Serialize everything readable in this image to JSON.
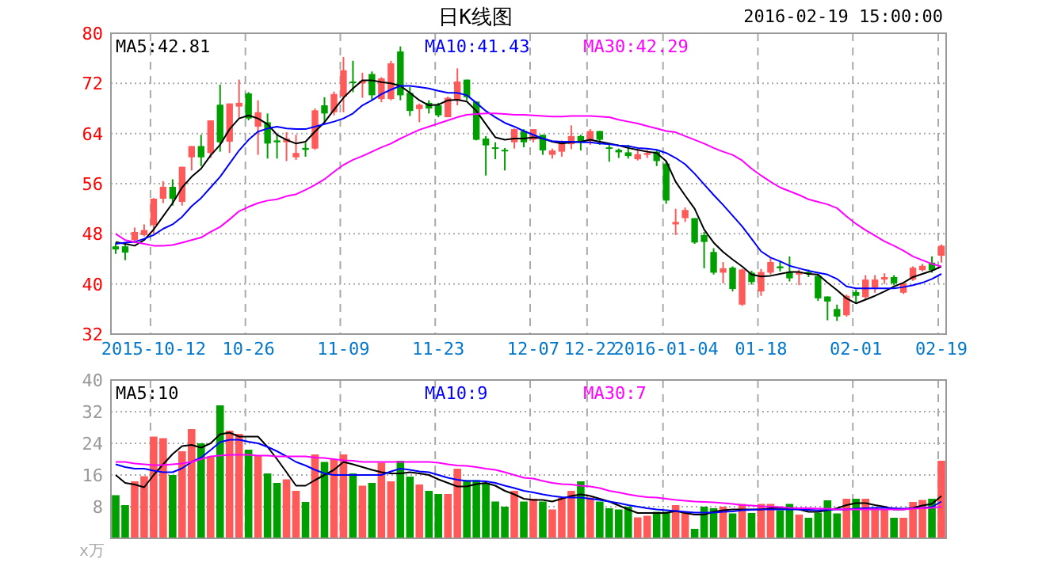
{
  "chart_data": [
    {
      "type": "candlestick",
      "title": "日K线图",
      "annotations": [
        "2016-02-19 15:00:00"
      ],
      "grid": true,
      "legend": "top",
      "ylim": [
        32,
        80
      ],
      "yticks": [
        32,
        40,
        48,
        56,
        64,
        72,
        80
      ],
      "categories": [
        null,
        null,
        null,
        null,
        "2015-10-12",
        null,
        null,
        null,
        null,
        null,
        null,
        null,
        null,
        null,
        "10-26",
        null,
        null,
        null,
        null,
        null,
        null,
        null,
        null,
        null,
        "11-09",
        null,
        null,
        null,
        null,
        null,
        null,
        null,
        null,
        null,
        "11-23",
        null,
        null,
        null,
        null,
        null,
        null,
        null,
        null,
        null,
        "12-07",
        null,
        null,
        null,
        null,
        null,
        "12-22",
        null,
        null,
        null,
        null,
        null,
        null,
        null,
        "2016-01-04",
        null,
        null,
        null,
        null,
        null,
        null,
        null,
        null,
        null,
        "01-18",
        null,
        null,
        null,
        null,
        null,
        null,
        null,
        null,
        null,
        "02-01",
        null,
        null,
        null,
        null,
        null,
        null,
        null,
        null,
        "02-19"
      ],
      "ohlc": [
        [
          46.0,
          46.6,
          44.8,
          45.5
        ],
        [
          46.0,
          46.4,
          43.8,
          45.0
        ],
        [
          47.0,
          49.0,
          46.5,
          48.3
        ],
        [
          47.8,
          49.5,
          47.6,
          48.6
        ],
        [
          49.4,
          53.7,
          48.0,
          53.6
        ],
        [
          53.6,
          56.4,
          52.9,
          55.5
        ],
        [
          55.5,
          56.7,
          52.5,
          53.6
        ],
        [
          53.1,
          58.7,
          52.5,
          58.7
        ],
        [
          60.2,
          62.0,
          58.1,
          62.0
        ],
        [
          62.0,
          63.8,
          58.8,
          60.2
        ],
        [
          60.9,
          66.1,
          60.1,
          66.1
        ],
        [
          68.6,
          71.8,
          61.1,
          62.6
        ],
        [
          62.7,
          68.8,
          60.9,
          68.8
        ],
        [
          68.3,
          72.6,
          66.4,
          68.9
        ],
        [
          70.4,
          70.6,
          66.1,
          66.4
        ],
        [
          65.1,
          69.3,
          60.6,
          67.4
        ],
        [
          65.8,
          67.2,
          60.0,
          62.4
        ],
        [
          62.9,
          63.9,
          60.0,
          62.6
        ],
        [
          62.6,
          64.2,
          59.6,
          63.2
        ],
        [
          60.2,
          63.8,
          59.8,
          60.9
        ],
        [
          61.7,
          62.5,
          60.3,
          61.4
        ],
        [
          61.6,
          68.0,
          61.4,
          67.7
        ],
        [
          68.5,
          69.8,
          65.8,
          67.2
        ],
        [
          67.4,
          70.7,
          66.9,
          70.3
        ],
        [
          69.9,
          76.2,
          67.4,
          74.1
        ],
        [
          72.3,
          75.6,
          70.6,
          72.1
        ],
        [
          72.0,
          73.7,
          69.7,
          72.4
        ],
        [
          73.5,
          73.9,
          69.3,
          70.1
        ],
        [
          69.5,
          73.0,
          69.0,
          72.8
        ],
        [
          69.5,
          75.6,
          69.3,
          75.2
        ],
        [
          77.1,
          77.9,
          69.3,
          70.1
        ],
        [
          70.5,
          71.4,
          66.8,
          67.6
        ],
        [
          67.9,
          68.8,
          65.8,
          68.6
        ],
        [
          68.9,
          69.3,
          67.2,
          68.0
        ],
        [
          68.5,
          68.9,
          66.6,
          66.9
        ],
        [
          66.6,
          69.9,
          66.6,
          69.7
        ],
        [
          69.3,
          74.4,
          68.5,
          72.3
        ],
        [
          72.6,
          72.6,
          69.3,
          69.8
        ],
        [
          69.1,
          69.1,
          62.9,
          63.0
        ],
        [
          63.2,
          63.6,
          57.3,
          62.1
        ],
        [
          61.8,
          62.6,
          59.9,
          61.6
        ],
        [
          61.4,
          61.7,
          58.1,
          61.2
        ],
        [
          62.6,
          64.8,
          61.6,
          64.7
        ],
        [
          64.4,
          64.7,
          61.8,
          62.6
        ],
        [
          63.0,
          64.7,
          62.6,
          64.7
        ],
        [
          63.8,
          63.8,
          60.6,
          61.3
        ],
        [
          60.6,
          61.6,
          60.0,
          61.3
        ],
        [
          61.1,
          62.9,
          60.3,
          62.7
        ],
        [
          62.3,
          65.3,
          61.5,
          63.6
        ],
        [
          63.6,
          63.8,
          61.3,
          62.6
        ],
        [
          62.8,
          64.7,
          62.2,
          64.4
        ],
        [
          64.4,
          64.4,
          62.2,
          63.0
        ],
        [
          61.8,
          62.4,
          59.5,
          61.6
        ],
        [
          61.4,
          61.6,
          60.1,
          61.0
        ],
        [
          61.0,
          62.2,
          60.0,
          60.4
        ],
        [
          59.9,
          61.3,
          59.7,
          60.7
        ],
        [
          60.6,
          61.4,
          60.1,
          60.9
        ],
        [
          61.1,
          61.3,
          58.8,
          59.6
        ],
        [
          59.2,
          59.6,
          52.8,
          53.3
        ],
        [
          49.5,
          52.0,
          47.8,
          49.9
        ],
        [
          50.5,
          52.2,
          49.9,
          51.8
        ],
        [
          50.5,
          50.5,
          46.4,
          46.6
        ],
        [
          47.8,
          48.3,
          42.5,
          46.7
        ],
        [
          45.1,
          45.7,
          41.5,
          41.8
        ],
        [
          41.8,
          43.5,
          40.1,
          42.5
        ],
        [
          42.6,
          42.8,
          38.8,
          39.2
        ],
        [
          36.7,
          42.4,
          36.5,
          42.3
        ],
        [
          41.8,
          42.1,
          39.9,
          40.3
        ],
        [
          38.8,
          42.4,
          38.1,
          41.9
        ],
        [
          41.8,
          44.1,
          41.5,
          43.5
        ],
        [
          42.8,
          43.7,
          42.0,
          42.5
        ],
        [
          41.9,
          44.4,
          40.4,
          40.9
        ],
        [
          41.5,
          42.3,
          39.8,
          41.9
        ],
        [
          41.9,
          42.3,
          41.1,
          41.6
        ],
        [
          41.3,
          41.5,
          37.3,
          37.7
        ],
        [
          38.0,
          38.0,
          34.2,
          37.2
        ],
        [
          36.0,
          36.7,
          34.1,
          34.8
        ],
        [
          35.0,
          38.3,
          34.8,
          38.1
        ],
        [
          38.7,
          39.1,
          36.8,
          38.1
        ],
        [
          37.9,
          41.4,
          37.5,
          40.7
        ],
        [
          39.4,
          41.4,
          38.6,
          40.7
        ],
        [
          40.7,
          41.7,
          40.0,
          41.1
        ],
        [
          41.1,
          41.4,
          39.8,
          40.1
        ],
        [
          38.6,
          40.1,
          38.4,
          40.1
        ],
        [
          40.7,
          42.8,
          40.5,
          42.6
        ],
        [
          42.2,
          43.2,
          42.0,
          42.9
        ],
        [
          43.4,
          44.4,
          41.8,
          42.2
        ],
        [
          44.5,
          46.3,
          43.4,
          46.1
        ]
      ],
      "colors": [
        "#009f00",
        "#009f00",
        "#ff5a5a",
        "#ff5a5a",
        "#ff5a5a",
        "#ff5a5a",
        "#009f00",
        "#ff5a5a",
        "#ff5a5a",
        "#009f00",
        "#ff5a5a",
        "#009f00",
        "#ff5a5a",
        "#ff5a5a",
        "#009f00",
        "#ff5a5a",
        "#009f00",
        "#009f00",
        "#ff5a5a",
        "#ff5a5a",
        "#009f00",
        "#ff5a5a",
        "#009f00",
        "#ff5a5a",
        "#ff5a5a",
        "#009f00",
        "#ff5a5a",
        "#009f00",
        "#ff5a5a",
        "#ff5a5a",
        "#009f00",
        "#009f00",
        "#ff5a5a",
        "#009f00",
        "#009f00",
        "#ff5a5a",
        "#ff5a5a",
        "#009f00",
        "#009f00",
        "#009f00",
        "#009f00",
        "#009f00",
        "#ff5a5a",
        "#009f00",
        "#ff5a5a",
        "#009f00",
        "#ff5a5a",
        "#ff5a5a",
        "#ff5a5a",
        "#009f00",
        "#ff5a5a",
        "#009f00",
        "#009f00",
        "#009f00",
        "#009f00",
        "#ff5a5a",
        "#ff5a5a",
        "#009f00",
        "#009f00",
        "#ff5a5a",
        "#ff5a5a",
        "#009f00",
        "#009f00",
        "#009f00",
        "#ff5a5a",
        "#009f00",
        "#ff5a5a",
        "#009f00",
        "#ff5a5a",
        "#ff5a5a",
        "#009f00",
        "#009f00",
        "#ff5a5a",
        "#009f00",
        "#009f00",
        "#009f00",
        "#009f00",
        "#ff5a5a",
        "#009f00",
        "#ff5a5a",
        "#ff5a5a",
        "#ff5a5a",
        "#009f00",
        "#ff5a5a",
        "#ff5a5a",
        "#ff5a5a",
        "#009f00",
        "#ff5a5a"
      ],
      "series": [
        {
          "name": "MA5:42.81",
          "type": "line",
          "color": "#000000",
          "values": [
            46.7,
            46.4,
            46.1,
            47.0,
            48.7,
            50.8,
            52.9,
            55.4,
            57.1,
            58.4,
            60.5,
            62.2,
            64.7,
            66.4,
            66.9,
            66.4,
            65.5,
            63.8,
            63.0,
            62.4,
            62.7,
            64.3,
            65.8,
            67.8,
            69.7,
            71.2,
            72.5,
            72.5,
            72.2,
            72.0,
            71.6,
            70.5,
            69.3,
            68.5,
            68.6,
            69.3,
            69.4,
            69.1,
            67.6,
            65.5,
            63.4,
            63.0,
            63.2,
            63.2,
            63.4,
            63.2,
            62.7,
            62.4,
            62.6,
            62.7,
            63.0,
            62.7,
            62.4,
            62.1,
            61.7,
            61.4,
            61.1,
            60.9,
            59.6,
            56.3,
            54.1,
            52.0,
            48.7,
            46.6,
            45.1,
            43.9,
            42.8,
            41.5,
            41.2,
            41.3,
            41.6,
            41.9,
            41.9,
            41.6,
            41.5,
            40.2,
            39.0,
            37.7,
            36.9,
            37.5,
            38.1,
            38.8,
            39.6,
            40.2,
            41.1,
            41.6,
            42.1,
            42.8
          ]
        },
        {
          "name": "MA10:41.43",
          "type": "line",
          "color": "#0000ff",
          "values": [
            46.4,
            46.6,
            46.7,
            47.2,
            47.8,
            48.8,
            49.5,
            50.7,
            52.4,
            53.7,
            55.4,
            57.1,
            59.2,
            61.3,
            63.0,
            64.3,
            64.8,
            65.1,
            64.8,
            64.7,
            64.7,
            65.1,
            65.5,
            65.9,
            66.4,
            67.2,
            68.5,
            69.3,
            70.3,
            71.0,
            71.6,
            71.6,
            71.4,
            71.2,
            70.8,
            70.5,
            70.5,
            70.1,
            68.9,
            67.6,
            66.6,
            65.7,
            65.1,
            64.4,
            63.8,
            63.2,
            62.8,
            62.7,
            62.7,
            62.6,
            62.6,
            62.4,
            62.3,
            62.1,
            62.0,
            61.7,
            61.6,
            61.4,
            60.9,
            60.1,
            59.1,
            57.6,
            55.9,
            54.2,
            52.6,
            50.9,
            49.2,
            47.2,
            45.2,
            44.2,
            43.6,
            42.9,
            42.5,
            42.1,
            41.8,
            41.5,
            40.8,
            39.6,
            39.3,
            39.3,
            39.3,
            39.3,
            39.3,
            39.5,
            39.8,
            40.2,
            40.8,
            41.6
          ]
        },
        {
          "name": "MA30:42.29",
          "type": "line",
          "color": "#ff00ff",
          "values": [
            48.0,
            47.0,
            46.7,
            46.4,
            46.1,
            46.1,
            46.2,
            46.6,
            47.0,
            47.4,
            48.3,
            49.1,
            50.3,
            51.6,
            52.3,
            52.9,
            53.3,
            53.5,
            54.0,
            54.3,
            55.0,
            55.8,
            56.7,
            57.9,
            59.0,
            59.8,
            60.4,
            61.1,
            61.8,
            62.4,
            63.2,
            63.9,
            64.6,
            65.1,
            65.6,
            66.1,
            66.6,
            67.0,
            67.1,
            67.2,
            67.2,
            67.1,
            67.0,
            67.0,
            66.9,
            66.8,
            66.7,
            66.7,
            66.8,
            66.8,
            66.8,
            66.7,
            66.6,
            66.2,
            65.9,
            65.6,
            65.2,
            64.8,
            64.4,
            64.2,
            63.6,
            63.0,
            62.4,
            61.7,
            61.1,
            60.6,
            59.7,
            58.4,
            57.3,
            56.3,
            55.4,
            54.8,
            54.2,
            53.5,
            53.1,
            52.7,
            52.1,
            50.8,
            49.6,
            48.6,
            47.7,
            46.8,
            46.1,
            45.3,
            44.4,
            43.8,
            43.2,
            42.8
          ]
        }
      ]
    },
    {
      "type": "bar",
      "ylabel": "x万",
      "grid": true,
      "legend": "top",
      "tick_labels": "y",
      "ylim": [
        0,
        40
      ],
      "yticks": [
        {
          "value": 0,
          "label": null
        },
        8,
        16,
        24,
        32,
        40
      ],
      "categories": [
        null,
        null,
        null,
        null,
        null,
        null,
        null,
        null,
        null,
        null,
        null,
        null,
        null,
        null,
        null,
        null,
        null,
        null,
        null,
        null,
        null,
        null,
        null,
        null,
        null,
        null,
        null,
        null,
        null,
        null,
        null,
        null,
        null,
        null,
        null,
        null,
        null,
        null,
        null,
        null,
        null,
        null,
        null,
        null,
        null,
        null,
        null,
        null,
        null,
        null,
        null,
        null,
        null,
        null,
        null,
        null,
        null,
        null,
        null,
        null,
        null,
        null,
        null,
        null,
        null,
        null,
        null,
        null,
        null,
        null,
        null,
        null,
        null,
        null,
        null,
        null,
        null,
        null,
        null,
        null,
        null,
        null,
        null,
        null,
        null,
        null,
        null,
        null
      ],
      "series": [
        {
          "type": "bar",
          "colors": [
            "#009f00",
            "#009f00",
            "#ff5a5a",
            "#ff5a5a",
            "#ff5a5a",
            "#ff5a5a",
            "#009f00",
            "#ff5a5a",
            "#ff5a5a",
            "#009f00",
            "#ff5a5a",
            "#009f00",
            "#ff5a5a",
            "#ff5a5a",
            "#009f00",
            "#ff5a5a",
            "#009f00",
            "#009f00",
            "#ff5a5a",
            "#ff5a5a",
            "#009f00",
            "#ff5a5a",
            "#009f00",
            "#ff5a5a",
            "#ff5a5a",
            "#009f00",
            "#ff5a5a",
            "#009f00",
            "#ff5a5a",
            "#ff5a5a",
            "#009f00",
            "#009f00",
            "#ff5a5a",
            "#009f00",
            "#009f00",
            "#ff5a5a",
            "#ff5a5a",
            "#009f00",
            "#009f00",
            "#009f00",
            "#009f00",
            "#009f00",
            "#ff5a5a",
            "#009f00",
            "#ff5a5a",
            "#009f00",
            "#ff5a5a",
            "#ff5a5a",
            "#ff5a5a",
            "#009f00",
            "#ff5a5a",
            "#009f00",
            "#009f00",
            "#009f00",
            "#009f00",
            "#ff5a5a",
            "#ff5a5a",
            "#009f00",
            "#009f00",
            "#ff5a5a",
            "#ff5a5a",
            "#009f00",
            "#009f00",
            "#009f00",
            "#ff5a5a",
            "#009f00",
            "#ff5a5a",
            "#009f00",
            "#ff5a5a",
            "#ff5a5a",
            "#009f00",
            "#009f00",
            "#ff5a5a",
            "#009f00",
            "#009f00",
            "#009f00",
            "#009f00",
            "#ff5a5a",
            "#009f00",
            "#ff5a5a",
            "#ff5a5a",
            "#ff5a5a",
            "#009f00",
            "#ff5a5a",
            "#ff5a5a",
            "#ff5a5a",
            "#009f00",
            "#ff5a5a"
          ],
          "values": [
            10.9,
            8.4,
            14.4,
            15.7,
            25.7,
            25.3,
            16.0,
            22.0,
            27.6,
            24.0,
            20.7,
            33.6,
            27.2,
            26.4,
            22.4,
            20.9,
            16.4,
            14.0,
            14.9,
            12.0,
            9.2,
            21.2,
            19.3,
            20.0,
            21.2,
            16.4,
            13.3,
            14.0,
            19.1,
            14.4,
            19.6,
            15.6,
            13.6,
            12.0,
            11.2,
            11.2,
            17.6,
            14.7,
            14.7,
            14.0,
            9.3,
            8.0,
            12.0,
            9.3,
            10.0,
            9.3,
            7.3,
            10.3,
            12.0,
            14.4,
            10.3,
            9.3,
            7.6,
            7.3,
            8.0,
            5.3,
            5.7,
            6.7,
            6.7,
            8.4,
            6.7,
            2.4,
            8.0,
            7.6,
            8.0,
            6.3,
            8.7,
            6.4,
            8.7,
            8.7,
            7.1,
            8.7,
            6.0,
            5.2,
            6.5,
            9.6,
            6.3,
            10.0,
            10.0,
            10.0,
            7.6,
            7.3,
            5.2,
            5.2,
            9.2,
            9.7,
            10.0,
            19.6
          ]
        },
        {
          "name": "MA5:10",
          "type": "line",
          "color": "#000000",
          "values": [
            16.0,
            14.0,
            13.6,
            12.9,
            16.0,
            18.7,
            21.3,
            23.3,
            23.6,
            22.9,
            24.0,
            26.3,
            26.7,
            25.7,
            25.7,
            25.7,
            23.1,
            20.0,
            16.7,
            13.3,
            13.3,
            14.7,
            16.0,
            17.3,
            19.3,
            18.7,
            18.0,
            17.3,
            16.7,
            16.4,
            16.4,
            16.7,
            16.4,
            16.0,
            14.9,
            14.0,
            13.1,
            13.1,
            13.7,
            14.0,
            13.3,
            12.0,
            11.1,
            10.0,
            9.7,
            9.7,
            9.3,
            10.0,
            10.7,
            11.1,
            10.7,
            10.0,
            9.3,
            8.3,
            7.3,
            6.4,
            6.4,
            6.4,
            6.4,
            6.9,
            6.4,
            6.0,
            6.0,
            6.7,
            7.1,
            7.3,
            7.3,
            7.3,
            7.3,
            7.6,
            7.7,
            7.6,
            7.3,
            6.7,
            6.7,
            7.1,
            7.6,
            8.4,
            8.9,
            8.9,
            8.4,
            8.0,
            7.3,
            7.3,
            7.7,
            8.3,
            8.7,
            10.7
          ]
        },
        {
          "name": "MA10:9",
          "type": "line",
          "color": "#0000ff",
          "values": [
            18.7,
            18.0,
            17.6,
            17.6,
            17.1,
            16.7,
            16.7,
            17.7,
            19.3,
            20.4,
            22.3,
            24.3,
            24.9,
            24.9,
            24.4,
            24.0,
            23.1,
            22.0,
            20.7,
            19.3,
            18.4,
            17.3,
            16.4,
            16.0,
            16.0,
            16.0,
            16.0,
            16.0,
            16.0,
            16.9,
            17.6,
            17.3,
            16.9,
            16.7,
            16.0,
            15.3,
            14.8,
            14.5,
            14.5,
            14.4,
            14.0,
            13.3,
            12.7,
            12.0,
            11.6,
            11.1,
            10.7,
            10.4,
            10.3,
            10.3,
            10.0,
            9.7,
            9.3,
            8.9,
            8.4,
            8.0,
            7.6,
            7.3,
            7.1,
            6.9,
            6.7,
            6.5,
            6.5,
            6.5,
            6.7,
            6.8,
            7.1,
            7.2,
            7.3,
            7.3,
            7.3,
            7.3,
            7.3,
            7.2,
            7.1,
            7.2,
            7.3,
            7.3,
            7.5,
            7.6,
            7.7,
            7.7,
            7.6,
            7.5,
            7.6,
            7.7,
            7.9,
            9.3
          ]
        },
        {
          "name": "MA30:7",
          "type": "line",
          "color": "#ff00ff",
          "values": [
            19.3,
            19.3,
            18.9,
            18.7,
            18.5,
            18.5,
            18.7,
            18.9,
            19.3,
            20.0,
            20.7,
            20.9,
            21.1,
            21.1,
            21.1,
            20.9,
            20.9,
            20.7,
            20.7,
            20.7,
            20.7,
            20.4,
            20.3,
            20.0,
            19.7,
            19.6,
            19.3,
            19.3,
            19.3,
            19.3,
            19.3,
            19.3,
            19.3,
            19.3,
            19.1,
            18.7,
            18.4,
            18.3,
            18.0,
            17.6,
            17.3,
            16.7,
            16.0,
            15.3,
            15.1,
            14.5,
            14.0,
            13.7,
            13.6,
            13.3,
            13.1,
            12.7,
            12.0,
            11.6,
            11.1,
            10.7,
            10.4,
            10.3,
            10.0,
            9.7,
            9.5,
            9.3,
            9.2,
            9.1,
            8.9,
            8.7,
            8.4,
            8.3,
            8.1,
            8.0,
            7.9,
            7.7,
            7.6,
            7.6,
            7.5,
            7.5,
            7.3,
            7.3,
            7.3,
            7.3,
            7.3,
            7.3,
            7.3,
            7.3,
            7.5,
            7.6,
            7.7,
            8.0
          ]
        }
      ]
    }
  ]
}
